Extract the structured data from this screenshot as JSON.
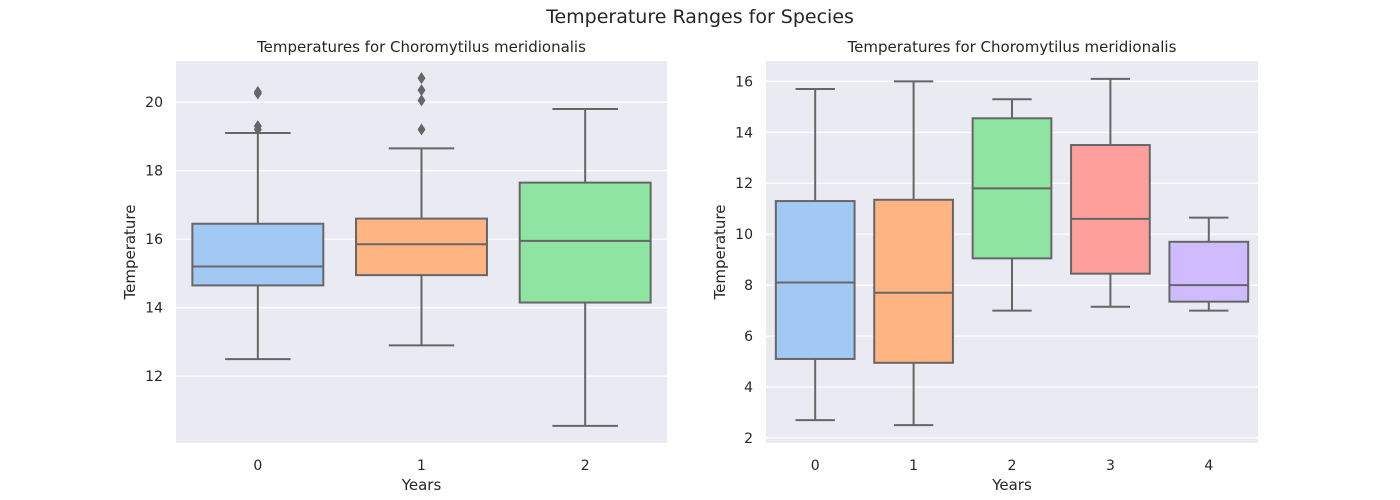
{
  "figure": {
    "title": "Temperature Ranges for Species"
  },
  "palette": [
    "#a1c9f4",
    "#ffb482",
    "#8de5a1",
    "#ff9f9b",
    "#d0bbff"
  ],
  "line_color": "#666666",
  "chart_data": [
    {
      "type": "box",
      "title": "Temperatures for Choromytilus meridionalis",
      "xlabel": "Years",
      "ylabel": "Temperature",
      "categories": [
        "0",
        "1",
        "2"
      ],
      "ylim": [
        10.05,
        21.2
      ],
      "yticks": [
        12,
        14,
        16,
        18,
        20
      ],
      "grid": true,
      "boxes": [
        {
          "whisker_low": 12.5,
          "q1": 14.65,
          "median": 15.2,
          "q3": 16.45,
          "whisker_high": 19.1,
          "outliers": [
            19.2,
            19.3,
            20.25,
            20.3
          ]
        },
        {
          "whisker_low": 12.9,
          "q1": 14.95,
          "median": 15.85,
          "q3": 16.6,
          "whisker_high": 18.65,
          "outliers": [
            19.2,
            20.05,
            20.35,
            20.7
          ]
        },
        {
          "whisker_low": 10.55,
          "q1": 14.15,
          "median": 15.95,
          "q3": 17.65,
          "whisker_high": 19.8,
          "outliers": []
        }
      ]
    },
    {
      "type": "box",
      "title": "Temperatures for Choromytilus meridionalis",
      "xlabel": "Years",
      "ylabel": "Temperature",
      "categories": [
        "0",
        "1",
        "2",
        "3",
        "4"
      ],
      "ylim": [
        1.8,
        16.8
      ],
      "yticks": [
        2,
        4,
        6,
        8,
        10,
        12,
        14,
        16
      ],
      "grid": true,
      "boxes": [
        {
          "whisker_low": 2.7,
          "q1": 5.1,
          "median": 8.1,
          "q3": 11.3,
          "whisker_high": 15.7,
          "outliers": []
        },
        {
          "whisker_low": 2.5,
          "q1": 4.95,
          "median": 7.7,
          "q3": 11.35,
          "whisker_high": 16.0,
          "outliers": []
        },
        {
          "whisker_low": 7.0,
          "q1": 9.05,
          "median": 11.8,
          "q3": 14.55,
          "whisker_high": 15.3,
          "outliers": []
        },
        {
          "whisker_low": 7.15,
          "q1": 8.45,
          "median": 10.6,
          "q3": 13.5,
          "whisker_high": 16.1,
          "outliers": []
        },
        {
          "whisker_low": 7.0,
          "q1": 7.35,
          "median": 8.0,
          "q3": 9.7,
          "whisker_high": 10.65,
          "outliers": []
        }
      ]
    }
  ]
}
